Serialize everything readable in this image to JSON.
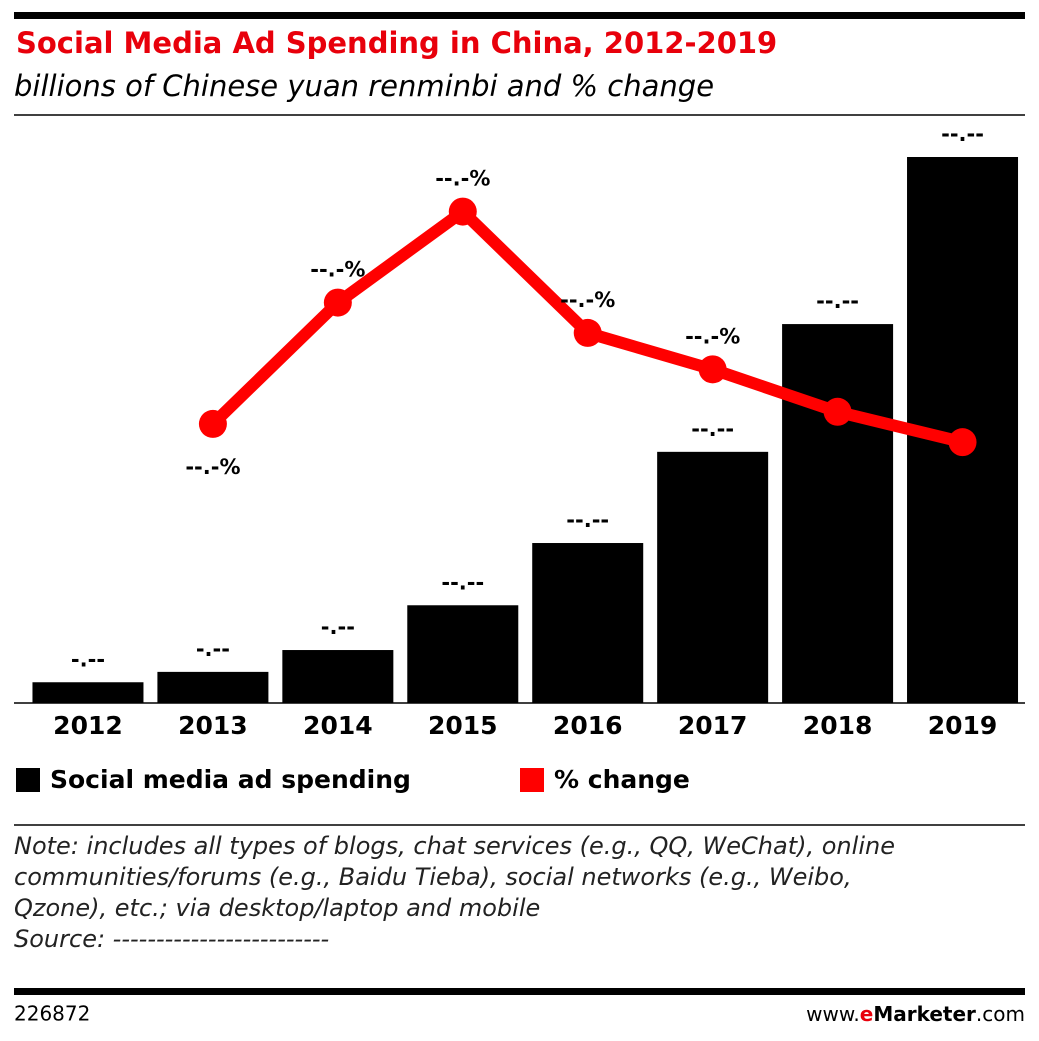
{
  "chart_data": {
    "type": "bar_line",
    "title": "Social Media Ad Spending in China, 2012-2019",
    "subtitle": "billions of Chinese yuan renminbi and % change",
    "categories": [
      "2012",
      "2013",
      "2014",
      "2015",
      "2016",
      "2017",
      "2018",
      "2019"
    ],
    "series": [
      {
        "name": "Social media ad spending",
        "color": "#000000",
        "type": "bar",
        "values": [
          3.8,
          5.7,
          9.7,
          17.9,
          29.3,
          46.0,
          69.4,
          100
        ],
        "value_labels": [
          "-.--",
          "-.--",
          "-.--",
          "--.--",
          "--.--",
          "--.--",
          "--.--",
          "--.--"
        ]
      },
      {
        "name": "% change",
        "color": "#ff0000",
        "type": "line",
        "axis": "y2",
        "values": [
          null,
          50,
          70,
          85,
          65,
          59,
          52,
          47
        ],
        "value_labels": [
          null,
          "--.-%",
          "--.-%",
          "--.-%",
          "--.-%",
          "--.-%",
          "--.-%",
          "--.-%"
        ]
      }
    ],
    "ylim": [
      0,
      100
    ],
    "y2lim": [
      4,
      94
    ],
    "note": [
      "Note: includes all types of blogs, chat services (e.g., QQ, WeChat), online",
      "communities/forums (e.g., Baidu Tieba), social networks (e.g., Weibo,",
      "Qzone), etc.; via desktop/laptop and mobile",
      "Source: -------------------------"
    ],
    "chart_id": "226872",
    "brand": [
      "www.",
      "e",
      "Marketer",
      ".com"
    ]
  }
}
